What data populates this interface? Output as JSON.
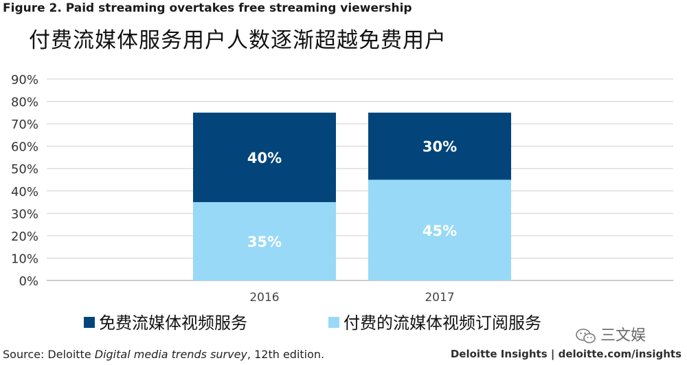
{
  "figure_label": "Figure 2. Paid streaming overtakes free streaming viewership",
  "chart_data": {
    "type": "bar",
    "stacked": true,
    "title": "付费流媒体服务用户人数逐渐超越免费用户",
    "categories": [
      "2016",
      "2017"
    ],
    "series": [
      {
        "name": "付费的流媒体视频订阅服务",
        "values": [
          35,
          45
        ],
        "labels": [
          "35%",
          "45%"
        ],
        "color": "#97d9f7"
      },
      {
        "name": "免费流媒体视频服务",
        "values": [
          40,
          30
        ],
        "labels": [
          "40%",
          "30%"
        ],
        "color": "#03457a"
      }
    ],
    "ylim": [
      0,
      90
    ],
    "yticks": [
      "0%",
      "10%",
      "20%",
      "30%",
      "40%",
      "50%",
      "60%",
      "70%",
      "80%",
      "90%"
    ],
    "grid": true,
    "legend_placement": "bottom"
  },
  "legend": [
    {
      "label": "免费流媒体视频服务",
      "color": "#03457a"
    },
    {
      "label": "付费的流媒体视频订阅服务",
      "color": "#97d9f7"
    }
  ],
  "source": {
    "prefix": "Source: Deloitte ",
    "italic": "Digital media trends survey",
    "suffix": ", 12th edition."
  },
  "brand": "Deloitte Insights | deloitte.com/insights",
  "watermark": "三文娱"
}
